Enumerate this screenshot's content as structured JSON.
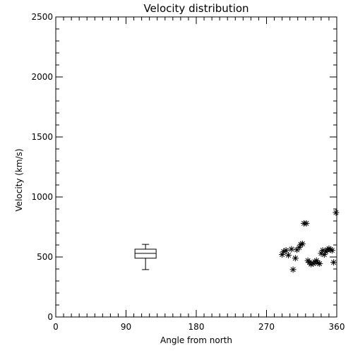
{
  "chart_data": {
    "type": "scatter",
    "title": "Velocity distribution",
    "xlabel": "Angle from north",
    "ylabel": "Velocity (km/s)",
    "xlim": [
      0,
      360
    ],
    "ylim": [
      0,
      2500
    ],
    "xticks": [
      0,
      90,
      180,
      270,
      360
    ],
    "yticks": [
      0,
      500,
      1000,
      1500,
      2000,
      2500
    ],
    "grid": false,
    "legend": "none",
    "series": [
      {
        "marker": "asterisk",
        "points": [
          [
            290,
            520
          ],
          [
            292,
            545
          ],
          [
            295,
            555
          ],
          [
            298,
            515
          ],
          [
            302,
            565
          ],
          [
            304,
            395
          ],
          [
            307,
            490
          ],
          [
            309,
            560
          ],
          [
            312,
            580
          ],
          [
            314,
            605
          ],
          [
            316,
            610
          ],
          [
            318,
            780
          ],
          [
            321,
            780
          ],
          [
            323,
            470
          ],
          [
            325,
            455
          ],
          [
            327,
            440
          ],
          [
            330,
            445
          ],
          [
            332,
            460
          ],
          [
            334,
            470
          ],
          [
            336,
            450
          ],
          [
            338,
            445
          ],
          [
            340,
            530
          ],
          [
            342,
            555
          ],
          [
            344,
            520
          ],
          [
            346,
            545
          ],
          [
            348,
            560
          ],
          [
            350,
            570
          ],
          [
            352,
            560
          ],
          [
            354,
            555
          ],
          [
            356,
            455
          ],
          [
            359,
            870
          ]
        ]
      }
    ],
    "boxplot": {
      "x": 115,
      "min": 395,
      "q1": 490,
      "median": 530,
      "q3": 565,
      "max": 605
    }
  }
}
